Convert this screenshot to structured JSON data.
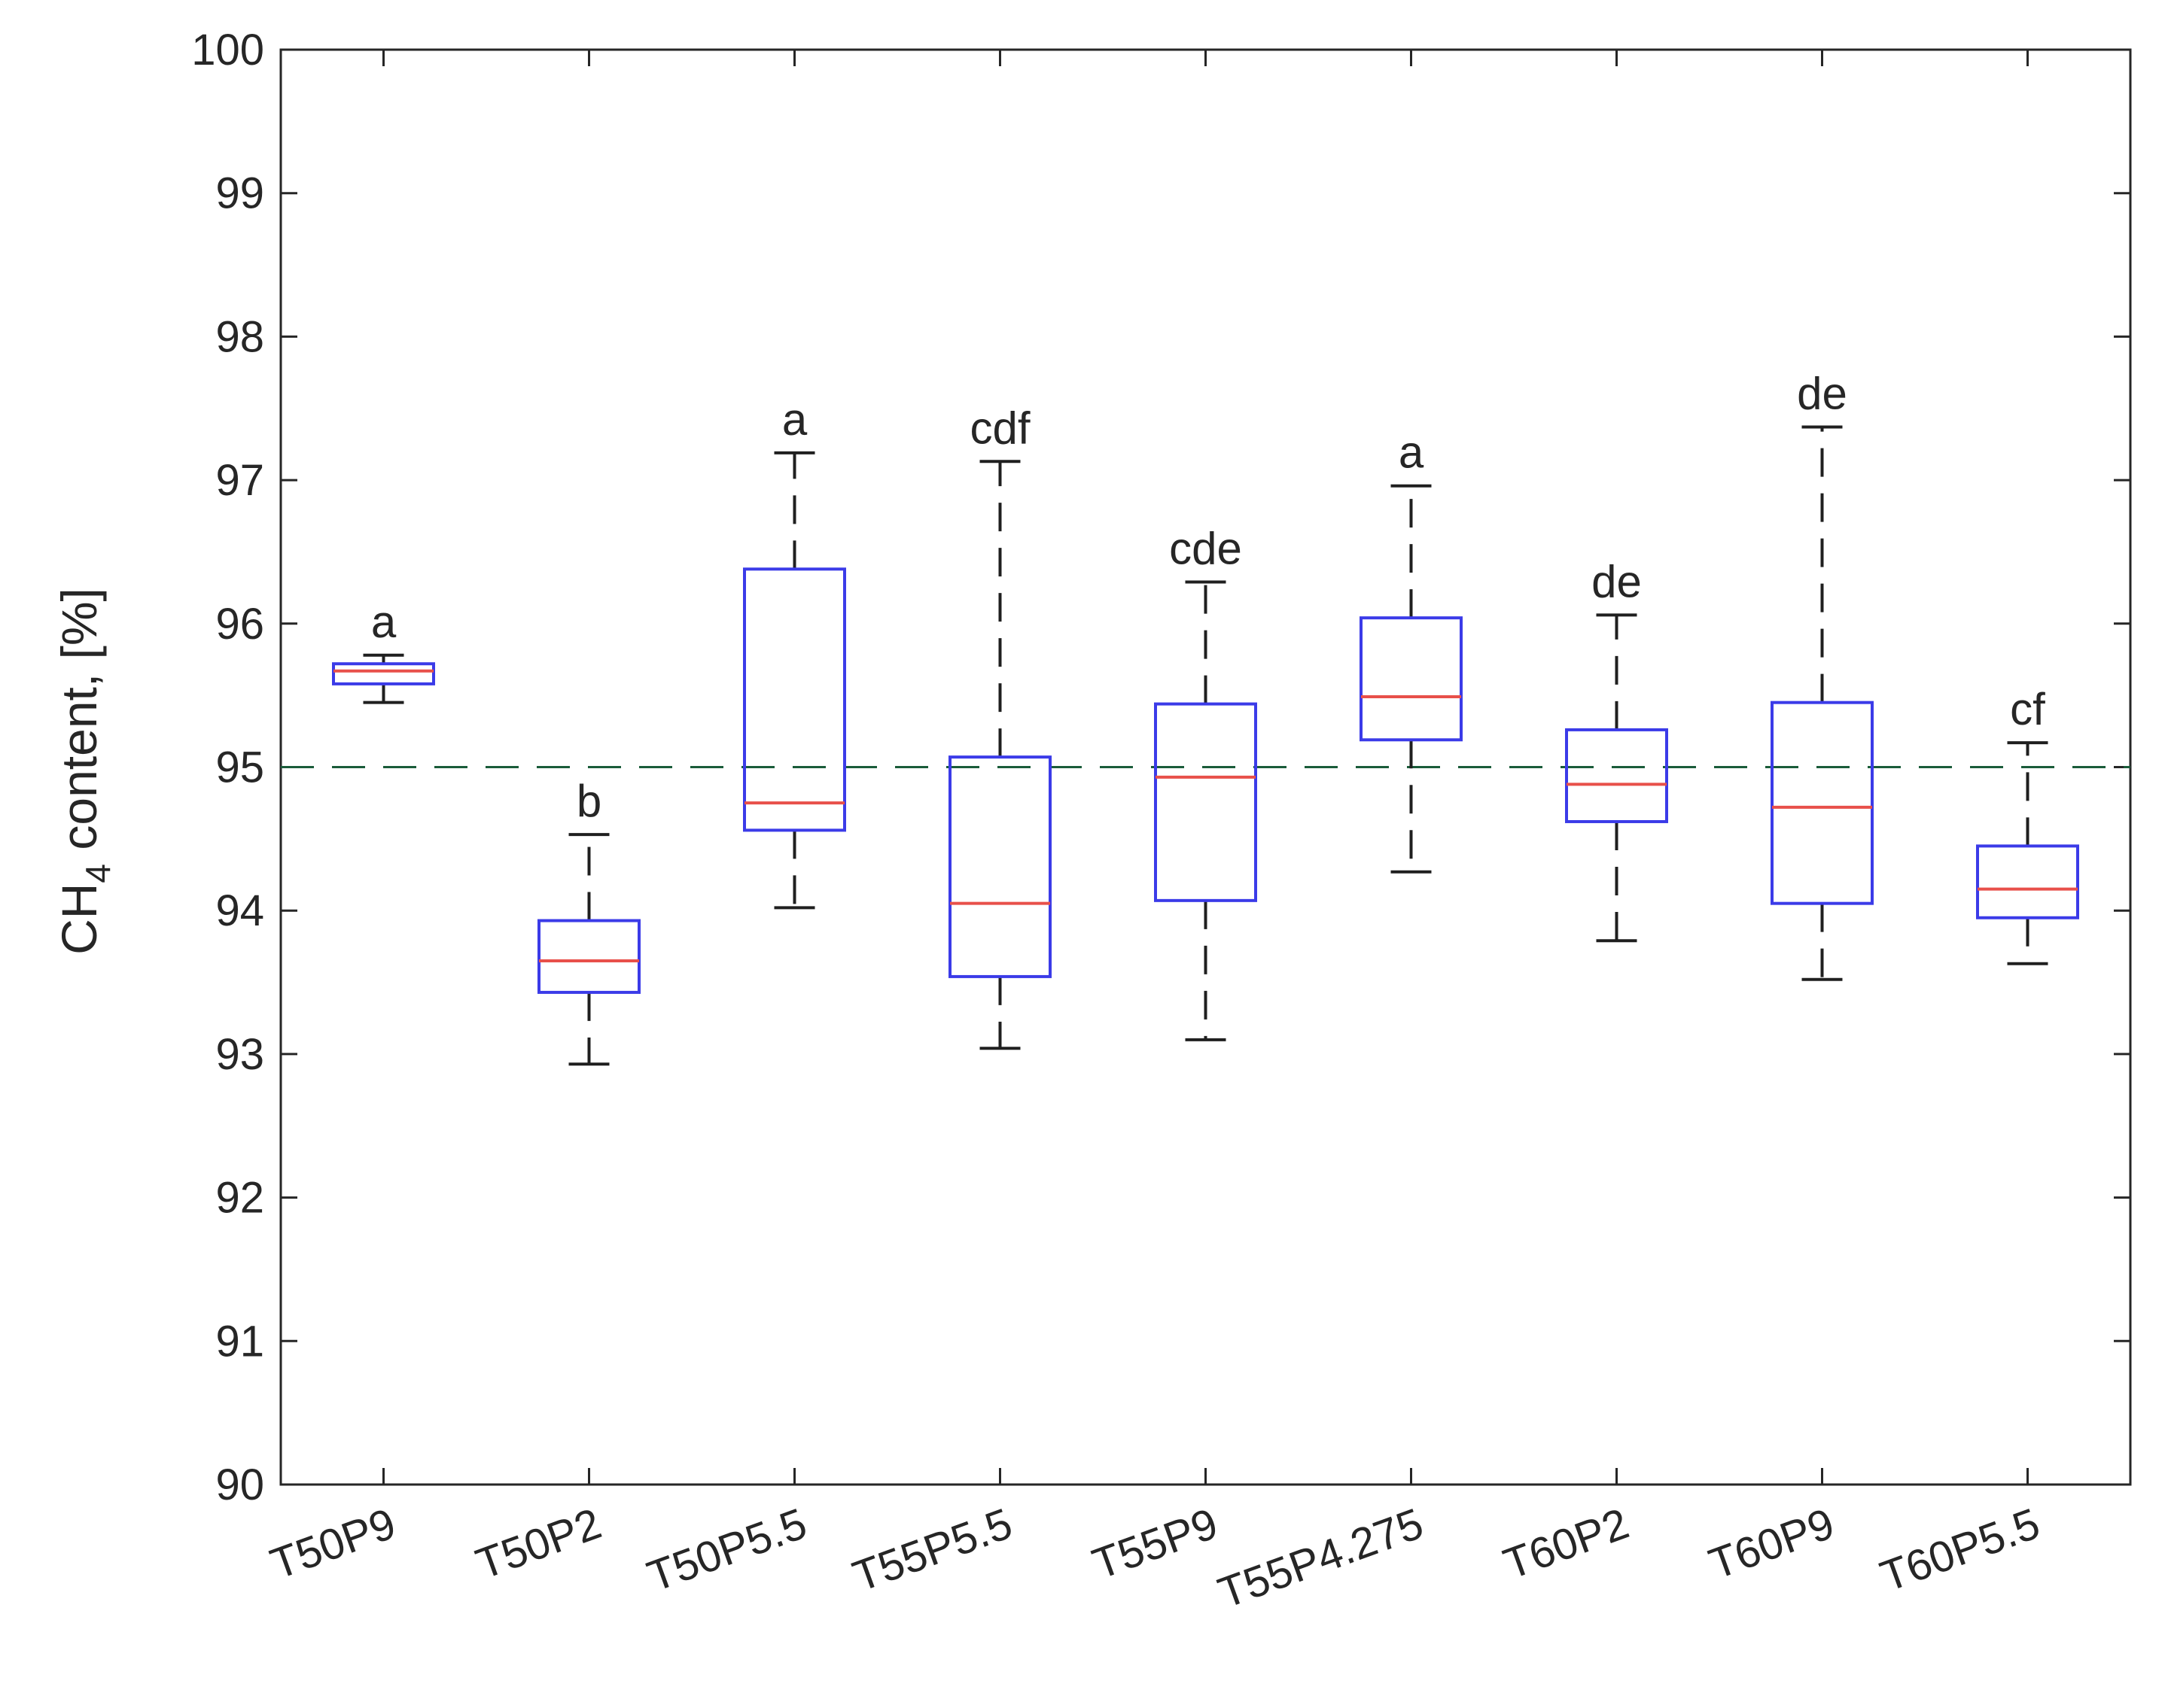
{
  "chart_data": {
    "type": "boxplot",
    "ylabel": {
      "main": "CH",
      "sub": "4",
      "rest": " content, [%]"
    },
    "ylim": [
      90,
      100
    ],
    "yticks": [
      90,
      91,
      92,
      93,
      94,
      95,
      96,
      97,
      98,
      99,
      100
    ],
    "reference_line": {
      "y": 95,
      "style": "dashed"
    },
    "categories": [
      "T50P9",
      "T50P2",
      "T50P5.5",
      "T55P5.5",
      "T55P9",
      "T55P4.275",
      "T60P2",
      "T60P9",
      "T60P5.5"
    ],
    "boxes": [
      {
        "min": 95.45,
        "q1": 95.58,
        "median": 95.67,
        "q3": 95.72,
        "max": 95.78,
        "letter": "a"
      },
      {
        "min": 92.93,
        "q1": 93.43,
        "median": 93.65,
        "q3": 93.93,
        "max": 94.53,
        "letter": "b"
      },
      {
        "min": 94.02,
        "q1": 94.56,
        "median": 94.75,
        "q3": 96.38,
        "max": 97.19,
        "letter": "a"
      },
      {
        "min": 93.04,
        "q1": 93.54,
        "median": 94.05,
        "q3": 95.07,
        "max": 97.13,
        "letter": "cdf"
      },
      {
        "min": 93.1,
        "q1": 94.07,
        "median": 94.93,
        "q3": 95.44,
        "max": 96.29,
        "letter": "cde"
      },
      {
        "min": 94.27,
        "q1": 95.19,
        "median": 95.49,
        "q3": 96.04,
        "max": 96.96,
        "letter": "a"
      },
      {
        "min": 93.79,
        "q1": 94.62,
        "median": 94.88,
        "q3": 95.26,
        "max": 96.06,
        "letter": "de"
      },
      {
        "min": 93.52,
        "q1": 94.05,
        "median": 94.72,
        "q3": 95.45,
        "max": 97.37,
        "letter": "de"
      },
      {
        "min": 93.63,
        "q1": 93.95,
        "median": 94.15,
        "q3": 94.45,
        "max": 95.17,
        "letter": "cf"
      }
    ],
    "colors": {
      "box": "#3b3be8",
      "median": "#e8504a",
      "whisker": "#1f1f1f",
      "axis": "#262626",
      "reference": "#1a5c3a"
    }
  }
}
